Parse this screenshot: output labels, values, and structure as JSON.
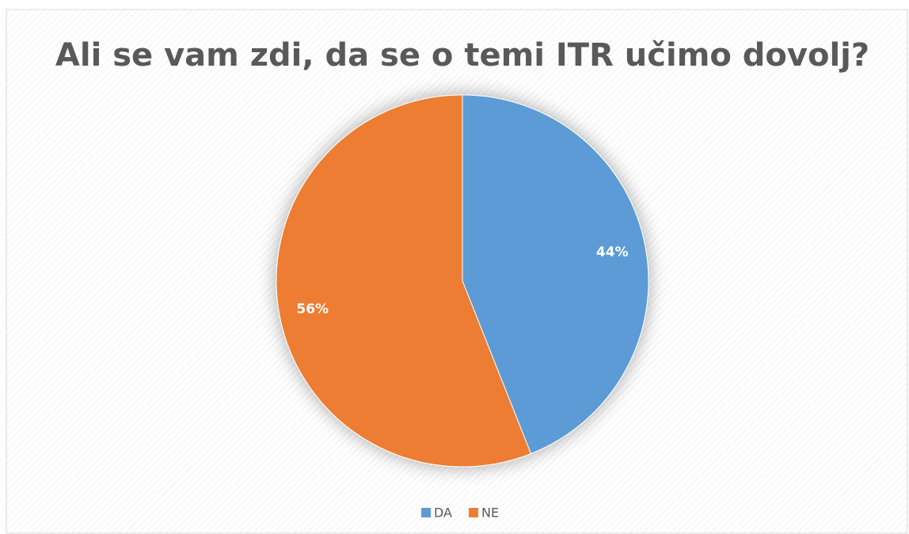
{
  "chart_data": {
    "type": "pie",
    "title": "Ali se vam zdi, da se o temi ITR učimo dovolj?",
    "categories": [
      "DA",
      "NE"
    ],
    "values": [
      44,
      56
    ],
    "value_labels": [
      "44%",
      "56%"
    ],
    "colors": [
      "#5b9bd5",
      "#ed7d31"
    ],
    "legend": "bottom"
  }
}
